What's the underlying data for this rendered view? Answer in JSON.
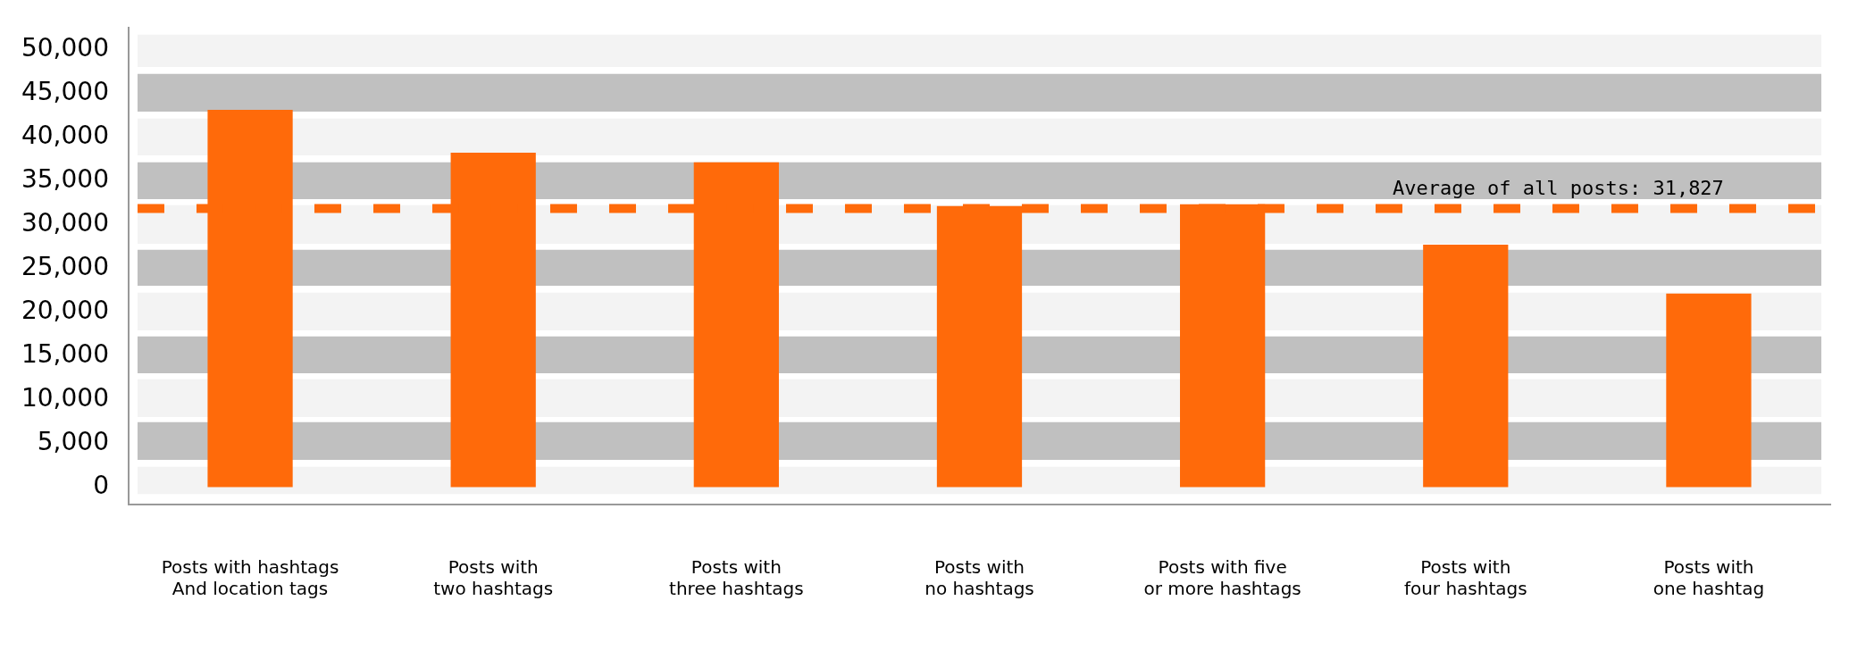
{
  "chart_data": {
    "type": "bar",
    "categories": [
      "Posts with hashtags\nAnd location tags",
      "Posts with\ntwo hashtags",
      "Posts with\nthree hashtags",
      "Posts with\nno hashtags",
      "Posts with five\nor more hashtags",
      "Posts with\nfour hashtags",
      "Posts with\none hashtag"
    ],
    "values": [
      43100,
      38200,
      37100,
      32100,
      32300,
      27700,
      22100
    ],
    "color": "#ff6a0a",
    "ylim": [
      -2000,
      52500
    ],
    "yticks": [
      {
        "value": 0,
        "label": "0"
      },
      {
        "value": 5000,
        "label": "5,000"
      },
      {
        "value": 10000,
        "label": "10,000"
      },
      {
        "value": 15000,
        "label": "15,000"
      },
      {
        "value": 20000,
        "label": "20,000"
      },
      {
        "value": 25000,
        "label": "25,000"
      },
      {
        "value": 30000,
        "label": "30,000"
      },
      {
        "value": 35000,
        "label": "35,000"
      },
      {
        "value": 40000,
        "label": "40,000"
      },
      {
        "value": 45000,
        "label": "45,000"
      },
      {
        "value": 50000,
        "label": "50,000"
      }
    ],
    "legend": false,
    "bands": [
      {
        "axis": "y",
        "from": 42900,
        "to": 47200,
        "color": "#c0c0c0"
      },
      {
        "axis": "y",
        "from": 32900,
        "to": 37100,
        "color": "#c0c0c0"
      },
      {
        "axis": "y",
        "from": 23000,
        "to": 27100,
        "color": "#c0c0c0"
      },
      {
        "axis": "y",
        "from": 13000,
        "to": 17200,
        "color": "#c0c0c0"
      },
      {
        "axis": "y",
        "from": 3100,
        "to": 7400,
        "color": "#c0c0c0"
      },
      {
        "axis": "y",
        "from": 48000,
        "to": 51700,
        "color": "#f3f3f3"
      },
      {
        "axis": "y",
        "from": 37900,
        "to": 42100,
        "color": "#f3f3f3"
      },
      {
        "axis": "y",
        "from": 27800,
        "to": 32200,
        "color": "#f3f3f3"
      },
      {
        "axis": "y",
        "from": 17900,
        "to": 22200,
        "color": "#f3f3f3"
      },
      {
        "axis": "y",
        "from": 8000,
        "to": 12300,
        "color": "#f3f3f3"
      },
      {
        "axis": "y",
        "from": -800,
        "to": 2300,
        "color": "#f3f3f3"
      }
    ],
    "ref_lines": [
      {
        "axis": "y",
        "value": 31827,
        "label": "Average of all posts: 31,827",
        "color": "#ff6a0a",
        "line_style": "dashed"
      }
    ]
  }
}
